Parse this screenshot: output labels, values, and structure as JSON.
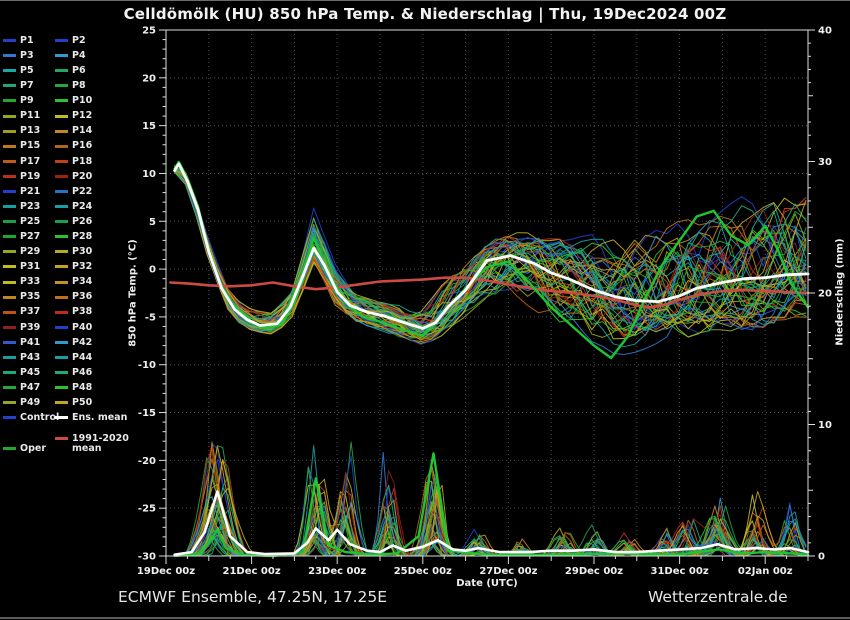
{
  "title": "Celldömölk  (HU)  850 hPa Temp. & Niederschlag | Thu, 19Dec2024 00Z",
  "footer": {
    "left": "ECMWF Ensemble, 47.25N, 17.25E",
    "right": "Wetterzentrale.de"
  },
  "colors": {
    "background": "#000000",
    "axis": "#dcdcdc",
    "grid": "#9a9a9a",
    "ens_mean": "#ffffff",
    "oper": "#1fc432",
    "climatology": "#cc4a44",
    "control": "#2240c8",
    "text": "#f0f0f0"
  },
  "legend": {
    "members": [
      {
        "label": "P1",
        "color": "#2240c8"
      },
      {
        "label": "P2",
        "color": "#2240c8"
      },
      {
        "label": "P3",
        "color": "#2f7ad0"
      },
      {
        "label": "P4",
        "color": "#2f9ad0"
      },
      {
        "label": "P5",
        "color": "#1ea6a6"
      },
      {
        "label": "P6",
        "color": "#22a862"
      },
      {
        "label": "P7",
        "color": "#1ea87e"
      },
      {
        "label": "P8",
        "color": "#24a83c"
      },
      {
        "label": "P9",
        "color": "#24a82c"
      },
      {
        "label": "P10",
        "color": "#2cc22c"
      },
      {
        "label": "P11",
        "color": "#96a61e"
      },
      {
        "label": "P12",
        "color": "#c4bc1e"
      },
      {
        "label": "P13",
        "color": "#a49c1e"
      },
      {
        "label": "P14",
        "color": "#c28a1e"
      },
      {
        "label": "P15",
        "color": "#c0781e"
      },
      {
        "label": "P16",
        "color": "#b06818"
      },
      {
        "label": "P17",
        "color": "#c05a18"
      },
      {
        "label": "P18",
        "color": "#c04018"
      },
      {
        "label": "P19",
        "color": "#b83020"
      },
      {
        "label": "P20",
        "color": "#a02018"
      },
      {
        "label": "P21",
        "color": "#2240c8"
      },
      {
        "label": "P22",
        "color": "#2870c8"
      },
      {
        "label": "P23",
        "color": "#18a0a0"
      },
      {
        "label": "P24",
        "color": "#18a0a0"
      },
      {
        "label": "P25",
        "color": "#18a048"
      },
      {
        "label": "P26",
        "color": "#18a048"
      },
      {
        "label": "P27",
        "color": "#20a828"
      },
      {
        "label": "P28",
        "color": "#2cc22c"
      },
      {
        "label": "P29",
        "color": "#96a61e"
      },
      {
        "label": "P30",
        "color": "#b4ac1e"
      },
      {
        "label": "P31",
        "color": "#c4bc1e"
      },
      {
        "label": "P32",
        "color": "#c2a41e"
      },
      {
        "label": "P33",
        "color": "#c4bc1e"
      },
      {
        "label": "P34",
        "color": "#c2941e"
      },
      {
        "label": "P35",
        "color": "#c2861e"
      },
      {
        "label": "P36",
        "color": "#c06e18"
      },
      {
        "label": "P37",
        "color": "#c05018"
      },
      {
        "label": "P38",
        "color": "#bc2c20"
      },
      {
        "label": "P39",
        "color": "#8e2020"
      },
      {
        "label": "P40",
        "color": "#2240c8"
      },
      {
        "label": "P41",
        "color": "#2f5ad0"
      },
      {
        "label": "P42",
        "color": "#2f9ad0"
      },
      {
        "label": "P43",
        "color": "#18a0a0"
      },
      {
        "label": "P44",
        "color": "#18a0a0"
      },
      {
        "label": "P45",
        "color": "#1ea87e"
      },
      {
        "label": "P46",
        "color": "#1ea87e"
      },
      {
        "label": "P47",
        "color": "#24a83c"
      },
      {
        "label": "P48",
        "color": "#2cc22c"
      },
      {
        "label": "P49",
        "color": "#96a61e"
      },
      {
        "label": "P50",
        "color": "#c2a41e"
      }
    ],
    "specials": [
      {
        "label": "Control",
        "color": "#2240c8"
      },
      {
        "label": "Ens. mean",
        "color": "#ffffff"
      },
      {
        "label": "Oper",
        "color": "#1fa82a"
      },
      {
        "label": "1991-2020 mean",
        "color": "#cc4a44",
        "wrap": true
      }
    ]
  },
  "chart_data": {
    "type": "line",
    "title": "Celldömölk (HU) 850 hPa Temp. & Niederschlag, ECMWF ensemble meteogram, run Thu 19Dec2024 00Z",
    "xlabel": "Date (UTC)",
    "ylabel_left": "850 hPa Temp. (°C)",
    "ylabel_right": "Niederschlag (mm)",
    "x_range_days": [
      0,
      15
    ],
    "ylim_left": [
      -30,
      25
    ],
    "ylim_right": [
      0,
      40
    ],
    "grid": "dotted, vertical every 1 day, horizontal every 5 °C",
    "legend_position": "left",
    "x_ticks": [
      {
        "d": 0,
        "label": "19Dec 00z"
      },
      {
        "d": 2,
        "label": "21Dec 00z"
      },
      {
        "d": 4,
        "label": "23Dec 00z"
      },
      {
        "d": 6,
        "label": "25Dec 00z"
      },
      {
        "d": 8,
        "label": "27Dec 00z"
      },
      {
        "d": 10,
        "label": "29Dec 00z"
      },
      {
        "d": 12,
        "label": "31Dec 00z"
      },
      {
        "d": 14,
        "label": "02Jan 00z"
      }
    ],
    "temp_ticks": [
      25,
      20,
      15,
      10,
      5,
      0,
      -5,
      -10,
      -15,
      -20,
      -25,
      -30
    ],
    "precip_ticks": [
      0,
      10,
      20,
      30,
      40
    ],
    "series": {
      "ens_mean_temp": {
        "t": [
          0.2,
          0.3,
          0.5,
          0.75,
          1.0,
          1.3,
          1.6,
          1.9,
          2.2,
          2.6,
          2.9,
          3.2,
          3.45,
          3.7,
          4.0,
          4.3,
          4.7,
          5.1,
          5.5,
          6.0,
          6.3,
          6.6,
          7.0,
          7.5,
          8.05,
          8.6,
          9.0,
          9.4,
          10.0,
          10.5,
          11.0,
          11.5,
          12.0,
          12.4,
          13.0,
          13.5,
          14.0,
          14.5,
          15.0
        ],
        "v": [
          10.3,
          11.0,
          9.2,
          6.2,
          1.8,
          -2.0,
          -4.2,
          -5.3,
          -5.9,
          -5.7,
          -4.0,
          -0.7,
          2.2,
          0.4,
          -2.4,
          -3.8,
          -4.5,
          -4.9,
          -5.5,
          -6.2,
          -5.6,
          -3.9,
          -2.2,
          0.9,
          1.4,
          0.6,
          -0.4,
          -1.0,
          -2.2,
          -2.9,
          -3.3,
          -3.4,
          -2.8,
          -2.0,
          -1.4,
          -1.0,
          -0.9,
          -0.6,
          -0.5
        ]
      },
      "oper_temp": {
        "t": [
          0.2,
          0.3,
          0.5,
          0.75,
          1.0,
          1.3,
          1.6,
          2.0,
          2.3,
          2.7,
          3.0,
          3.2,
          3.45,
          3.8,
          4.2,
          4.6,
          5.0,
          5.5,
          6.0,
          6.5,
          7.0,
          7.5,
          8.0,
          8.5,
          9.0,
          9.5,
          10.0,
          10.4,
          10.8,
          11.2,
          11.6,
          12.0,
          12.4,
          12.8,
          13.2,
          13.6,
          14.0,
          14.3,
          14.6,
          15.0
        ],
        "v": [
          10.5,
          11.2,
          9.5,
          6.5,
          2.0,
          -1.8,
          -4.0,
          -5.5,
          -6.2,
          -5.8,
          -3.5,
          -1.0,
          3.3,
          -0.5,
          -3.5,
          -5.0,
          -5.5,
          -6.3,
          -7.0,
          -4.5,
          -2.0,
          0.2,
          0.8,
          -1.5,
          -4.0,
          -6.0,
          -8.0,
          -9.3,
          -7.0,
          -3.0,
          0.5,
          3.0,
          5.5,
          6.1,
          3.5,
          2.5,
          4.5,
          2.0,
          -1.5,
          -4.0
        ]
      },
      "clim_temp": {
        "t": [
          0.1,
          0.5,
          1,
          1.5,
          2,
          2.5,
          3,
          3.5,
          4,
          4.5,
          5,
          5.5,
          6,
          6.5,
          7,
          7.5,
          8,
          8.5,
          9,
          9.5,
          10,
          10.5,
          11,
          11.3,
          11.6,
          12,
          12.5,
          13,
          13.5,
          14,
          14.5,
          15
        ],
        "v": [
          -1.4,
          -1.5,
          -1.7,
          -1.8,
          -1.7,
          -1.4,
          -1.8,
          -2.1,
          -1.9,
          -1.6,
          -1.3,
          -1.2,
          -1.1,
          -0.9,
          -0.9,
          -1.2,
          -1.6,
          -2.0,
          -2.3,
          -2.5,
          -2.8,
          -3.2,
          -3.8,
          -4.0,
          -3.8,
          -3.2,
          -2.6,
          -2.3,
          -2.2,
          -2.3,
          -2.4,
          -2.5
        ]
      },
      "ens_mean_precip": {
        "t": [
          0.2,
          0.6,
          0.9,
          1.2,
          1.5,
          1.9,
          2.3,
          3.0,
          3.3,
          3.5,
          3.8,
          4.0,
          4.3,
          4.7,
          5.0,
          5.3,
          5.6,
          6.0,
          6.35,
          6.7,
          7.0,
          7.3,
          7.8,
          8.5,
          9.0,
          9.5,
          10.0,
          10.5,
          11.0,
          11.5,
          12.0,
          12.5,
          12.9,
          13.3,
          13.8,
          14.2,
          14.6,
          15.0
        ],
        "v": [
          0.1,
          0.3,
          1.8,
          4.9,
          1.5,
          0.3,
          0.15,
          0.2,
          1.0,
          2.1,
          1.2,
          2.0,
          0.9,
          0.4,
          0.3,
          0.8,
          0.4,
          0.7,
          1.2,
          0.5,
          0.4,
          0.6,
          0.3,
          0.3,
          0.4,
          0.4,
          0.5,
          0.3,
          0.3,
          0.4,
          0.5,
          0.6,
          0.9,
          0.5,
          0.6,
          0.5,
          0.6,
          0.3
        ]
      },
      "oper_precip": {
        "t": [
          0.2,
          0.8,
          1.0,
          1.2,
          1.4,
          1.8,
          2.5,
          3.2,
          3.5,
          3.8,
          4.2,
          4.8,
          5.4,
          5.9,
          6.25,
          6.6,
          7.5,
          9.0,
          10.5,
          12.0,
          12.9,
          13.5,
          14.0,
          14.6,
          15.0
        ],
        "v": [
          0,
          0.2,
          1.0,
          2.0,
          0.6,
          0.1,
          0,
          0.3,
          5.9,
          0.8,
          0.3,
          0.1,
          0.2,
          1.5,
          7.8,
          0.4,
          0.1,
          0.1,
          0.2,
          0.1,
          0.5,
          0.2,
          0.3,
          0.2,
          0.1
        ]
      }
    },
    "members": {
      "count": 50,
      "note": "50 ensemble members drawn as thin spaghetti lines within the spread envelope below; tight bundle until ~25Dec then strong divergence",
      "spread_envelope": {
        "t": [
          0.2,
          0.5,
          1,
          1.5,
          2,
          2.5,
          3,
          3.45,
          4,
          4.5,
          5,
          5.5,
          6,
          6.5,
          7,
          7.5,
          8,
          8.5,
          9,
          9.5,
          10,
          10.5,
          11,
          11.5,
          12,
          12.5,
          13,
          13.5,
          14,
          14.5,
          15
        ],
        "lo": [
          10.0,
          8.3,
          0.5,
          -5.2,
          -6.6,
          -7.0,
          -5.2,
          0.0,
          -4.6,
          -6.0,
          -6.6,
          -7.5,
          -8.2,
          -7.0,
          -5.2,
          -3.8,
          -3.6,
          -4.8,
          -6.2,
          -7.2,
          -8.6,
          -9.6,
          -9.2,
          -8.8,
          -8.2,
          -7.8,
          -7.2,
          -7.8,
          -7.2,
          -6.8,
          -6.2
        ],
        "hi": [
          11.2,
          10.2,
          3.2,
          -2.4,
          -4.0,
          -4.4,
          -1.4,
          6.8,
          0.2,
          -2.4,
          -3.0,
          -3.4,
          -3.8,
          -0.8,
          1.6,
          3.6,
          4.6,
          4.6,
          4.2,
          4.2,
          4.4,
          4.8,
          5.2,
          5.8,
          6.6,
          7.2,
          7.8,
          8.5,
          9.5,
          10.5,
          11.0
        ]
      },
      "precip_clusters": [
        {
          "t": 1.2,
          "w": 0.7,
          "max": 10.0,
          "p": 0.95
        },
        {
          "t": 3.5,
          "w": 0.55,
          "max": 8.6,
          "p": 0.8
        },
        {
          "t": 4.2,
          "w": 0.5,
          "max": 9.2,
          "p": 0.6
        },
        {
          "t": 5.2,
          "w": 0.45,
          "max": 8.7,
          "p": 0.5
        },
        {
          "t": 6.25,
          "w": 0.5,
          "max": 8.2,
          "p": 0.7
        },
        {
          "t": 7.3,
          "w": 0.5,
          "max": 2.2,
          "p": 0.5
        },
        {
          "t": 8.3,
          "w": 0.4,
          "max": 1.5,
          "p": 0.4
        },
        {
          "t": 9.3,
          "w": 0.5,
          "max": 2.6,
          "p": 0.5
        },
        {
          "t": 10.0,
          "w": 0.5,
          "max": 2.6,
          "p": 0.5
        },
        {
          "t": 10.8,
          "w": 0.5,
          "max": 2.0,
          "p": 0.4
        },
        {
          "t": 11.6,
          "w": 0.5,
          "max": 2.5,
          "p": 0.4
        },
        {
          "t": 12.2,
          "w": 0.6,
          "max": 3.5,
          "p": 0.5
        },
        {
          "t": 12.9,
          "w": 0.6,
          "max": 5.2,
          "p": 0.6
        },
        {
          "t": 13.8,
          "w": 0.55,
          "max": 5.5,
          "p": 0.6
        },
        {
          "t": 14.6,
          "w": 0.5,
          "max": 4.5,
          "p": 0.6
        }
      ]
    }
  }
}
